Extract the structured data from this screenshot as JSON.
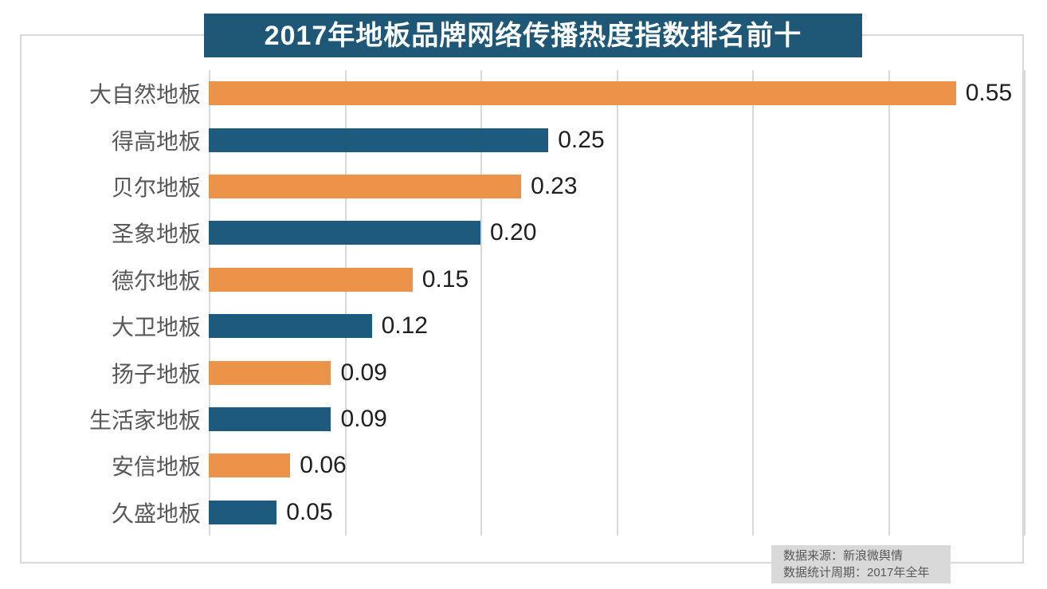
{
  "title": "2017年地板品牌网络传播热度指数排名前十",
  "chart_data": {
    "type": "bar",
    "orientation": "horizontal",
    "title": "2017年地板品牌网络传播热度指数排名前十",
    "categories": [
      "大自然地板",
      "得高地板",
      "贝尔地板",
      "圣象地板",
      "德尔地板",
      "大卫地板",
      "扬子地板",
      "生活家地板",
      "安信地板",
      "久盛地板"
    ],
    "values": [
      0.55,
      0.25,
      0.23,
      0.2,
      0.15,
      0.12,
      0.09,
      0.09,
      0.06,
      0.05
    ],
    "value_labels": [
      "0.55",
      "0.25",
      "0.23",
      "0.20",
      "0.15",
      "0.12",
      "0.09",
      "0.09",
      "0.06",
      "0.05"
    ],
    "xlabel": "",
    "ylabel": "",
    "xlim": [
      0,
      0.6
    ],
    "gridline_step": 0.1,
    "grid": true,
    "legend": false,
    "data_labels": true,
    "bar_colors": [
      "#ed9349",
      "#1e5a7d"
    ],
    "bar_color_rule": "alternating, odd ranks orange, even ranks dark blue"
  },
  "source_note": {
    "line1": "数据来源：新浪微舆情",
    "line2": "数据统计周期：2017年全年"
  },
  "colors": {
    "banner_bg": "#1f5876",
    "banner_text": "#ffffff",
    "orange_bar": "#ed9349",
    "blue_bar": "#1e5a7d",
    "gridline": "#d9d9d9",
    "frame": "#d9d9d9",
    "category_label": "#595959",
    "value_label": "#1f1f1f",
    "source_bg": "#d9d9d9",
    "source_text": "#595959"
  }
}
